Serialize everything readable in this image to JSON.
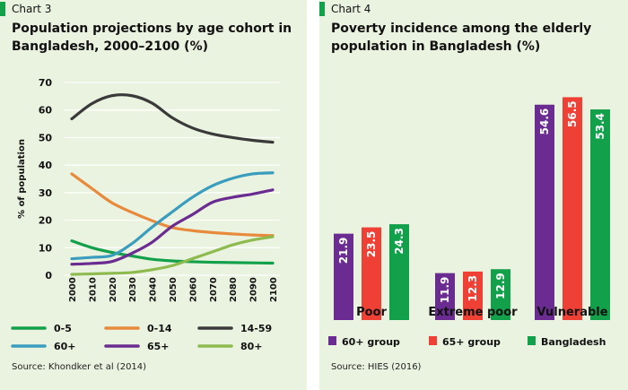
{
  "colors": {
    "panel_bg": "#eaf3df",
    "accent": "#13a04b",
    "grid": "#ffffff",
    "purple": "#6a2c91",
    "red": "#ef4036",
    "green": "#13a04b"
  },
  "left": {
    "chart_label": "Chart 3",
    "title": "Population projections by age cohort in Bangladesh, 2000–2100 (%)",
    "source": "Source: Khondker et al (2014)"
  },
  "right": {
    "chart_label": "Chart 4",
    "title": "Poverty incidence among the elderly population in Bangladesh (%)",
    "source": "Source: HIES (2016)"
  },
  "chart_data": [
    {
      "type": "line",
      "title": "Population projections by age cohort in Bangladesh, 2000–2100 (%)",
      "xlabel": "",
      "ylabel": "% of population",
      "x": [
        2000,
        2010,
        2020,
        2030,
        2040,
        2050,
        2060,
        2070,
        2080,
        2090,
        2100
      ],
      "ylim": [
        0,
        70
      ],
      "yticks": [
        0,
        10,
        20,
        30,
        40,
        50,
        60,
        70
      ],
      "grid": true,
      "legend": "bottom",
      "series": [
        {
          "name": "0-5",
          "color": "#13a04b",
          "values": [
            12.5,
            10,
            8.3,
            7,
            5.8,
            5.2,
            4.9,
            4.7,
            4.6,
            4.5,
            4.4
          ]
        },
        {
          "name": "0-14",
          "color": "#e88a3c",
          "values": [
            36.8,
            31.5,
            26.3,
            22.8,
            19.8,
            17.3,
            16.2,
            15.5,
            15,
            14.6,
            14.4
          ]
        },
        {
          "name": "14-59",
          "color": "#3a3a3a",
          "values": [
            56.8,
            62.3,
            65.2,
            65.2,
            62.5,
            57.2,
            53.5,
            51.3,
            50,
            49,
            48.3
          ]
        },
        {
          "name": "60+",
          "color": "#3b9dbd",
          "values": [
            6,
            6.5,
            7.2,
            11.5,
            17.5,
            23,
            28.3,
            32.5,
            35.2,
            36.8,
            37.2
          ]
        },
        {
          "name": "65+",
          "color": "#6a2c91",
          "values": [
            4,
            4.3,
            5,
            8,
            12,
            17.8,
            22,
            26.5,
            28.3,
            29.5,
            31
          ]
        },
        {
          "name": "80+",
          "color": "#8dbb4f",
          "values": [
            0.3,
            0.5,
            0.7,
            1,
            2,
            3.5,
            6,
            8.5,
            11,
            12.8,
            14
          ]
        }
      ]
    },
    {
      "type": "bar",
      "title": "Poverty incidence among the elderly population in Bangladesh (%)",
      "categories": [
        "Poor",
        "Extreme poor",
        "Vulnerable"
      ],
      "legend": "bottom",
      "grid": false,
      "series": [
        {
          "name": "60+ group",
          "color": "#6a2c91",
          "values": [
            21.9,
            11.9,
            54.6
          ]
        },
        {
          "name": "65+ group",
          "color": "#ef4036",
          "values": [
            23.5,
            12.3,
            56.5
          ]
        },
        {
          "name": "Bangladesh",
          "color": "#13a04b",
          "values": [
            24.3,
            12.9,
            53.4
          ]
        }
      ]
    }
  ]
}
